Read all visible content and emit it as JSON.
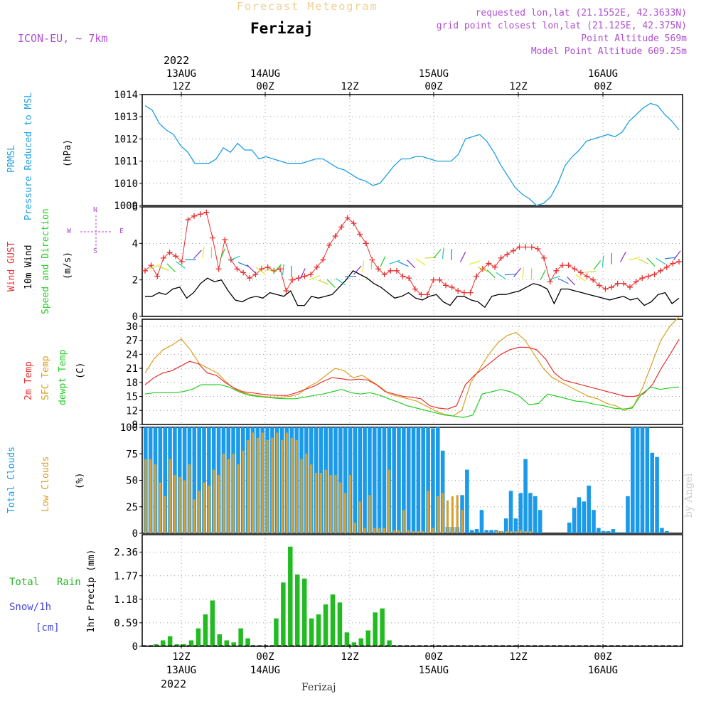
{
  "header": {
    "app_title": "Forecast Meteogram",
    "location": "Ferizaj",
    "model": "ICON-EU, ~ 7km",
    "requested": "requested lon,lat (21.1552E, 42.3633N)",
    "grid": "grid point closest lon,lat (21.125E, 42.375N)",
    "point_alt": "Point Altitude 569m",
    "model_alt": "Model Point Altitude 609.25m",
    "footer": "Ferizaj",
    "watermark": "by Angel"
  },
  "colors": {
    "pressure": "#1f9fe0",
    "gust": "#e83030",
    "wind": "#000000",
    "direction": "#22cc22",
    "temp2m": "#e83030",
    "sfc": "#d9a020",
    "dewpt": "#22cc22",
    "total_clouds": "#1a9ae8",
    "low_clouds": "#d9a030",
    "rain": "#22bb22",
    "snow": "#4444dd",
    "header": "#b050d0"
  },
  "time_axis": {
    "top_year": "2022",
    "bottom_year": "2022",
    "ticks": [
      {
        "top": "13AUG",
        "bottom": "12Z",
        "label_hour": "12Z",
        "day": "13AUG"
      },
      {
        "top": "14AUG",
        "bottom": "00Z",
        "label_hour": "00Z",
        "day": "14AUG"
      },
      {
        "top": "",
        "bottom": "12Z",
        "label_hour": "12Z",
        "day": ""
      },
      {
        "top": "15AUG",
        "bottom": "00Z",
        "label_hour": "00Z",
        "day": "15AUG"
      },
      {
        "top": "",
        "bottom": "12Z",
        "label_hour": "12Z",
        "day": ""
      },
      {
        "top": "16AUG",
        "bottom": "00Z",
        "label_hour": "00Z",
        "day": "16AUG"
      }
    ]
  },
  "panels": {
    "pressure": {
      "label1": "PRMSL",
      "label2": "Pressure Reduced to MSL",
      "unit": "(hPa)"
    },
    "wind": {
      "label1": "Wind GUST",
      "label2": "10m Wind",
      "label3": "Speed and Direction",
      "unit": "(m/s)",
      "rose_n": "N",
      "rose_s": "S",
      "rose_w": "W",
      "rose_e": "E"
    },
    "temp": {
      "label1": "2m Temp",
      "label2": "SFC Temp",
      "label3": "dewpt Temp",
      "unit": "(C)"
    },
    "clouds": {
      "label1": "Total Clouds",
      "label2": "Low Clouds",
      "unit": "(%)"
    },
    "precip": {
      "label1": "Total",
      "label1b": "Rain",
      "label2": "Snow/1h",
      "label3": "[cm]",
      "unit": "1hr Precip (mm)"
    }
  },
  "chart_data": [
    {
      "type": "line",
      "panel": "pressure",
      "x_hours": "hours from 13AUG 00Z, hourly from 7 to 70",
      "series": [
        {
          "name": "PRMSL",
          "values": [
            1013.5,
            1013.3,
            1012.7,
            1012.4,
            1012.2,
            1011.7,
            1011.4,
            1010.9,
            1010.9,
            1010.9,
            1011.1,
            1011.6,
            1011.4,
            1011.8,
            1011.5,
            1011.5,
            1011.1,
            1011.2,
            1011.1,
            1011.0,
            1010.9,
            1010.9,
            1010.9,
            1011.0,
            1011.1,
            1011.1,
            1010.9,
            1010.7,
            1010.6,
            1010.4,
            1010.2,
            1010.1,
            1009.9,
            1010.0,
            1010.4,
            1010.8,
            1011.1,
            1011.1,
            1011.2,
            1011.2,
            1011.1,
            1011.0,
            1011.0,
            1011.0,
            1011.3,
            1012.0,
            1012.1,
            1012.2,
            1011.9,
            1011.4,
            1010.8,
            1010.3,
            1009.8,
            1009.5,
            1009.3,
            1009.0,
            1009.1,
            1009.4,
            1010.0,
            1010.8,
            1011.2,
            1011.5,
            1011.9,
            1012.0,
            1012.1,
            1012.2,
            1012.1,
            1012.3,
            1012.8,
            1013.1,
            1013.4,
            1013.6,
            1013.5,
            1013.1,
            1012.8,
            1012.4
          ]
        }
      ],
      "ylim": [
        1009,
        1014
      ],
      "ticks": [
        1009,
        1010,
        1011,
        1012,
        1013,
        1014
      ]
    },
    {
      "type": "line",
      "panel": "wind",
      "series": [
        {
          "name": "Wind GUST",
          "values": [
            2.5,
            2.8,
            2.2,
            3.2,
            3.5,
            3.3,
            3.0,
            5.3,
            5.5,
            5.6,
            5.7,
            4.3,
            2.6,
            4.2,
            3.1,
            2.6,
            2.4,
            2.1,
            2.3,
            2.6,
            2.7,
            2.5,
            2.6,
            1.4,
            2.0,
            2.1,
            2.2,
            2.3,
            2.7,
            3.1,
            3.9,
            4.4,
            4.9,
            5.4,
            5.1,
            4.5,
            4.0,
            3.1,
            2.6,
            2.3,
            2.5,
            2.5,
            2.2,
            2.1,
            1.5,
            1.2,
            1.2,
            2.0,
            2.0,
            1.7,
            1.6,
            1.4,
            1.3,
            1.3,
            2.2,
            2.6,
            2.9,
            2.7,
            3.2,
            3.4,
            3.6,
            3.8,
            3.8,
            3.8,
            3.7,
            3.2,
            1.9,
            2.5,
            2.8,
            2.8,
            2.6,
            2.4,
            2.2,
            2.0,
            1.7,
            1.5,
            1.6,
            1.8,
            1.8,
            1.6,
            1.9,
            2.1,
            2.2,
            2.3,
            2.5,
            2.7,
            2.9,
            3.0
          ]
        },
        {
          "name": "10m Wind",
          "values": [
            1.1,
            1.1,
            1.3,
            1.2,
            1.5,
            1.6,
            1.0,
            1.3,
            1.8,
            2.1,
            1.9,
            2.0,
            1.4,
            0.9,
            0.8,
            1.0,
            1.1,
            1.0,
            1.3,
            1.2,
            1.1,
            1.4,
            0.6,
            0.6,
            1.1,
            1.0,
            1.1,
            1.2,
            1.6,
            2.0,
            2.5,
            2.3,
            2.1,
            1.8,
            1.6,
            1.3,
            1.0,
            1.1,
            1.3,
            1.0,
            0.9,
            1.1,
            1.2,
            0.8,
            0.6,
            1.1,
            1.1,
            0.9,
            0.8,
            0.5,
            1.1,
            1.2,
            1.2,
            1.3,
            1.4,
            1.6,
            1.8,
            1.7,
            1.5,
            0.7,
            1.5,
            1.5,
            1.4,
            1.3,
            1.2,
            1.1,
            1.0,
            0.9,
            1.0,
            1.1,
            0.9,
            1.0,
            0.6,
            0.8,
            1.2,
            1.3,
            0.7,
            1.0
          ]
        }
      ],
      "ylim": [
        0,
        6
      ],
      "ticks": [
        0,
        2,
        4,
        6
      ]
    },
    {
      "type": "line",
      "panel": "temp",
      "series": [
        {
          "name": "2m Temp",
          "values": [
            17.5,
            19,
            20,
            20.5,
            21.5,
            22.5,
            22,
            20,
            19.5,
            18,
            16.8,
            16,
            15.8,
            15.5,
            15.3,
            15.2,
            15.2,
            15.8,
            16.5,
            17.2,
            18.2,
            19,
            18.8,
            18.5,
            18.7,
            18.5,
            17.5,
            16,
            15.5,
            15,
            14.8,
            14.5,
            13,
            12.5,
            12.3,
            13,
            17.5,
            19.5,
            21,
            22.5,
            24,
            25,
            25.5,
            25.5,
            25,
            23,
            20,
            18.5,
            18,
            17.5,
            17,
            16.5,
            16,
            15.5,
            15,
            15,
            15.5,
            17.5,
            21,
            24,
            27.2
          ]
        },
        {
          "name": "SFC Temp",
          "values": [
            20,
            23,
            25,
            26,
            27.3,
            25,
            22,
            21,
            20,
            18,
            16.5,
            15.7,
            15.3,
            15,
            14.8,
            14.8,
            15,
            15.5,
            17,
            18,
            19.5,
            21,
            20.5,
            19,
            19.5,
            18.3,
            17,
            15.5,
            15,
            14.5,
            14,
            13,
            12,
            11.2,
            10.8,
            12,
            18,
            21,
            24,
            26.5,
            28,
            28.7,
            27,
            24,
            21,
            19,
            18,
            17,
            16,
            15,
            14.5,
            13.5,
            13,
            12,
            13,
            17,
            22,
            27,
            30,
            32
          ]
        },
        {
          "name": "dewpt Temp",
          "values": [
            15.5,
            15.8,
            15.8,
            15.8,
            16,
            16.5,
            17.5,
            17.5,
            17.5,
            17,
            16,
            15.3,
            15,
            14.8,
            14.6,
            14.5,
            14.5,
            14.8,
            15.2,
            15.5,
            16,
            16.5,
            15.8,
            15.5,
            15.8,
            15.3,
            14.5,
            13.8,
            13,
            12.5,
            12,
            11.5,
            11,
            10.8,
            10.5,
            11,
            15.5,
            16,
            16.5,
            16,
            15,
            13.2,
            13.5,
            15.5,
            15,
            14.5,
            14,
            13.8,
            13.3,
            13,
            12.5,
            12.3,
            12.5,
            15.5,
            17,
            16.5,
            16.8,
            17
          ]
        }
      ],
      "ylim": [
        9,
        31.5
      ],
      "ticks": [
        9,
        12,
        15,
        18,
        21,
        24,
        27,
        30
      ]
    },
    {
      "type": "bar",
      "panel": "clouds",
      "series": [
        {
          "name": "Total Clouds",
          "values": [
            100,
            100,
            100,
            100,
            100,
            100,
            100,
            100,
            100,
            100,
            100,
            100,
            100,
            100,
            100,
            100,
            100,
            100,
            100,
            100,
            100,
            100,
            100,
            100,
            100,
            100,
            100,
            100,
            100,
            100,
            100,
            100,
            100,
            100,
            100,
            100,
            100,
            100,
            100,
            100,
            100,
            100,
            100,
            100,
            100,
            100,
            100,
            100,
            100,
            100,
            100,
            100,
            100,
            100,
            100,
            100,
            100,
            100,
            100,
            99,
            100,
            78,
            6,
            6,
            6,
            36,
            60,
            3,
            4,
            22,
            3,
            3,
            3,
            2,
            14,
            40,
            14,
            38,
            70,
            38,
            35,
            22,
            0,
            0,
            0,
            0,
            0,
            10,
            24,
            34,
            30,
            45,
            22,
            5,
            2,
            2,
            4,
            1,
            1,
            35,
            100,
            100,
            100,
            100,
            76,
            72,
            5,
            2
          ]
        },
        {
          "name": "Low Clouds",
          "values": [
            70,
            70,
            65,
            48,
            35,
            70,
            55,
            53,
            50,
            65,
            32,
            40,
            48,
            45,
            60,
            55,
            75,
            70,
            75,
            65,
            78,
            88,
            95,
            90,
            95,
            88,
            90,
            95,
            88,
            95,
            90,
            88,
            70,
            75,
            65,
            57,
            57,
            60,
            55,
            55,
            48,
            38,
            55,
            10,
            30,
            5,
            36,
            5,
            5,
            5,
            60,
            3,
            3,
            22,
            3,
            2,
            2,
            2,
            40,
            5,
            35,
            38,
            31,
            35,
            36,
            22,
            0,
            0,
            0,
            0,
            0,
            0,
            2,
            2,
            2,
            2,
            2,
            3,
            2,
            2,
            0,
            0,
            0,
            0,
            0,
            0,
            0,
            0,
            0,
            0,
            0,
            0,
            0,
            0,
            0,
            0,
            0,
            0,
            0,
            0,
            0
          ]
        }
      ],
      "ylim": [
        0,
        100
      ],
      "ticks": [
        0,
        25,
        50,
        75,
        100
      ]
    },
    {
      "type": "bar",
      "panel": "precip",
      "series": [
        {
          "name": "Total Rain",
          "values": [
            0.05,
            0.15,
            0.25,
            0.05,
            0.05,
            0.15,
            0.45,
            0.8,
            1.15,
            0.3,
            0.15,
            0.1,
            0.45,
            0.2,
            0,
            0,
            0,
            0.7,
            1.6,
            2.5,
            1.8,
            1.7,
            0.7,
            0.8,
            1.05,
            1.3,
            1.1,
            0.35,
            0.1,
            0.2,
            0.4,
            0.85,
            0.95,
            0.15
          ]
        }
      ],
      "ylim": [
        0,
        2.8
      ],
      "ticks": [
        0,
        0.59,
        1.18,
        1.77,
        2.36
      ]
    }
  ]
}
